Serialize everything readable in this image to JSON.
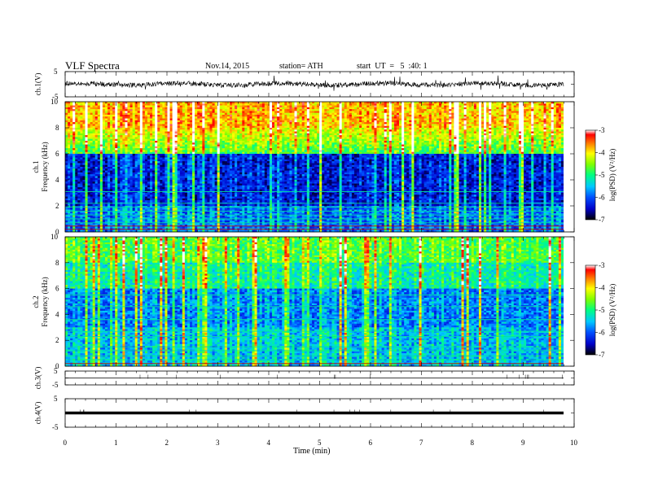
{
  "header": {
    "title": "VLF Spectra",
    "date": "Nov.14, 2015",
    "station": "station= ATH",
    "start": "start  UT  =   5  :40: 1"
  },
  "colors": {
    "scale": [
      "#000000",
      "#0000c8",
      "#0050ff",
      "#00c8ff",
      "#00ff80",
      "#80ff00",
      "#ffff00",
      "#ff8000",
      "#ff0000",
      "#ffffff"
    ]
  },
  "chart_data": [
    {
      "type": "line",
      "panel": "ch.1(V)",
      "ylabel": "ch.1(V)",
      "ylim": [
        -5,
        5
      ],
      "yticks": [
        "5",
        "-5"
      ],
      "x_range_min": [
        0,
        9.8
      ],
      "baseline_v": 0.0,
      "noise_amplitude_v": 1.5
    },
    {
      "type": "heatmap",
      "panel": "ch.1 spectrogram",
      "ylabel": "ch.1\nFrequency  (kHz)",
      "ylim": [
        0,
        10
      ],
      "yticks": [
        "0",
        "2",
        "4",
        "6",
        "8",
        "10"
      ],
      "x_range_min": [
        0,
        9.8
      ],
      "colorbar": {
        "label": "log(PSD) (V²/Hz)",
        "range": [
          -7,
          -3
        ],
        "ticks": [
          "-3",
          "-4",
          "-5",
          "-6",
          "-7"
        ]
      }
    },
    {
      "type": "heatmap",
      "panel": "ch.2 spectrogram",
      "ylabel": "ch.2\nFrequency  (kHz)",
      "ylim": [
        0,
        10
      ],
      "yticks": [
        "0",
        "2",
        "4",
        "6",
        "8",
        "10"
      ],
      "x_range_min": [
        0,
        9.8
      ],
      "colorbar": {
        "label": "log(PSD) (V²/Hz)",
        "range": [
          -7,
          -3
        ],
        "ticks": [
          "-3",
          "-4",
          "-5",
          "-6",
          "-7"
        ]
      }
    },
    {
      "type": "line",
      "panel": "ch.3(V)",
      "ylabel": "ch.3(V)",
      "ylim": [
        -5,
        5
      ],
      "yticks": [
        "5",
        "-5"
      ],
      "x_range_min": [
        0,
        9.8
      ],
      "baseline_v": 0.0
    },
    {
      "type": "line",
      "panel": "ch.4(V)",
      "ylabel": "ch.4(V)",
      "ylim": [
        -5,
        5
      ],
      "yticks": [
        "5",
        "-5"
      ],
      "x_range_min": [
        0,
        9.8
      ],
      "baseline_v": 0.0
    }
  ],
  "xaxis": {
    "label": "Time  (min)",
    "range": [
      0,
      10
    ],
    "ticks": [
      "0",
      "1",
      "2",
      "3",
      "4",
      "5",
      "6",
      "7",
      "8",
      "9",
      "10"
    ]
  }
}
